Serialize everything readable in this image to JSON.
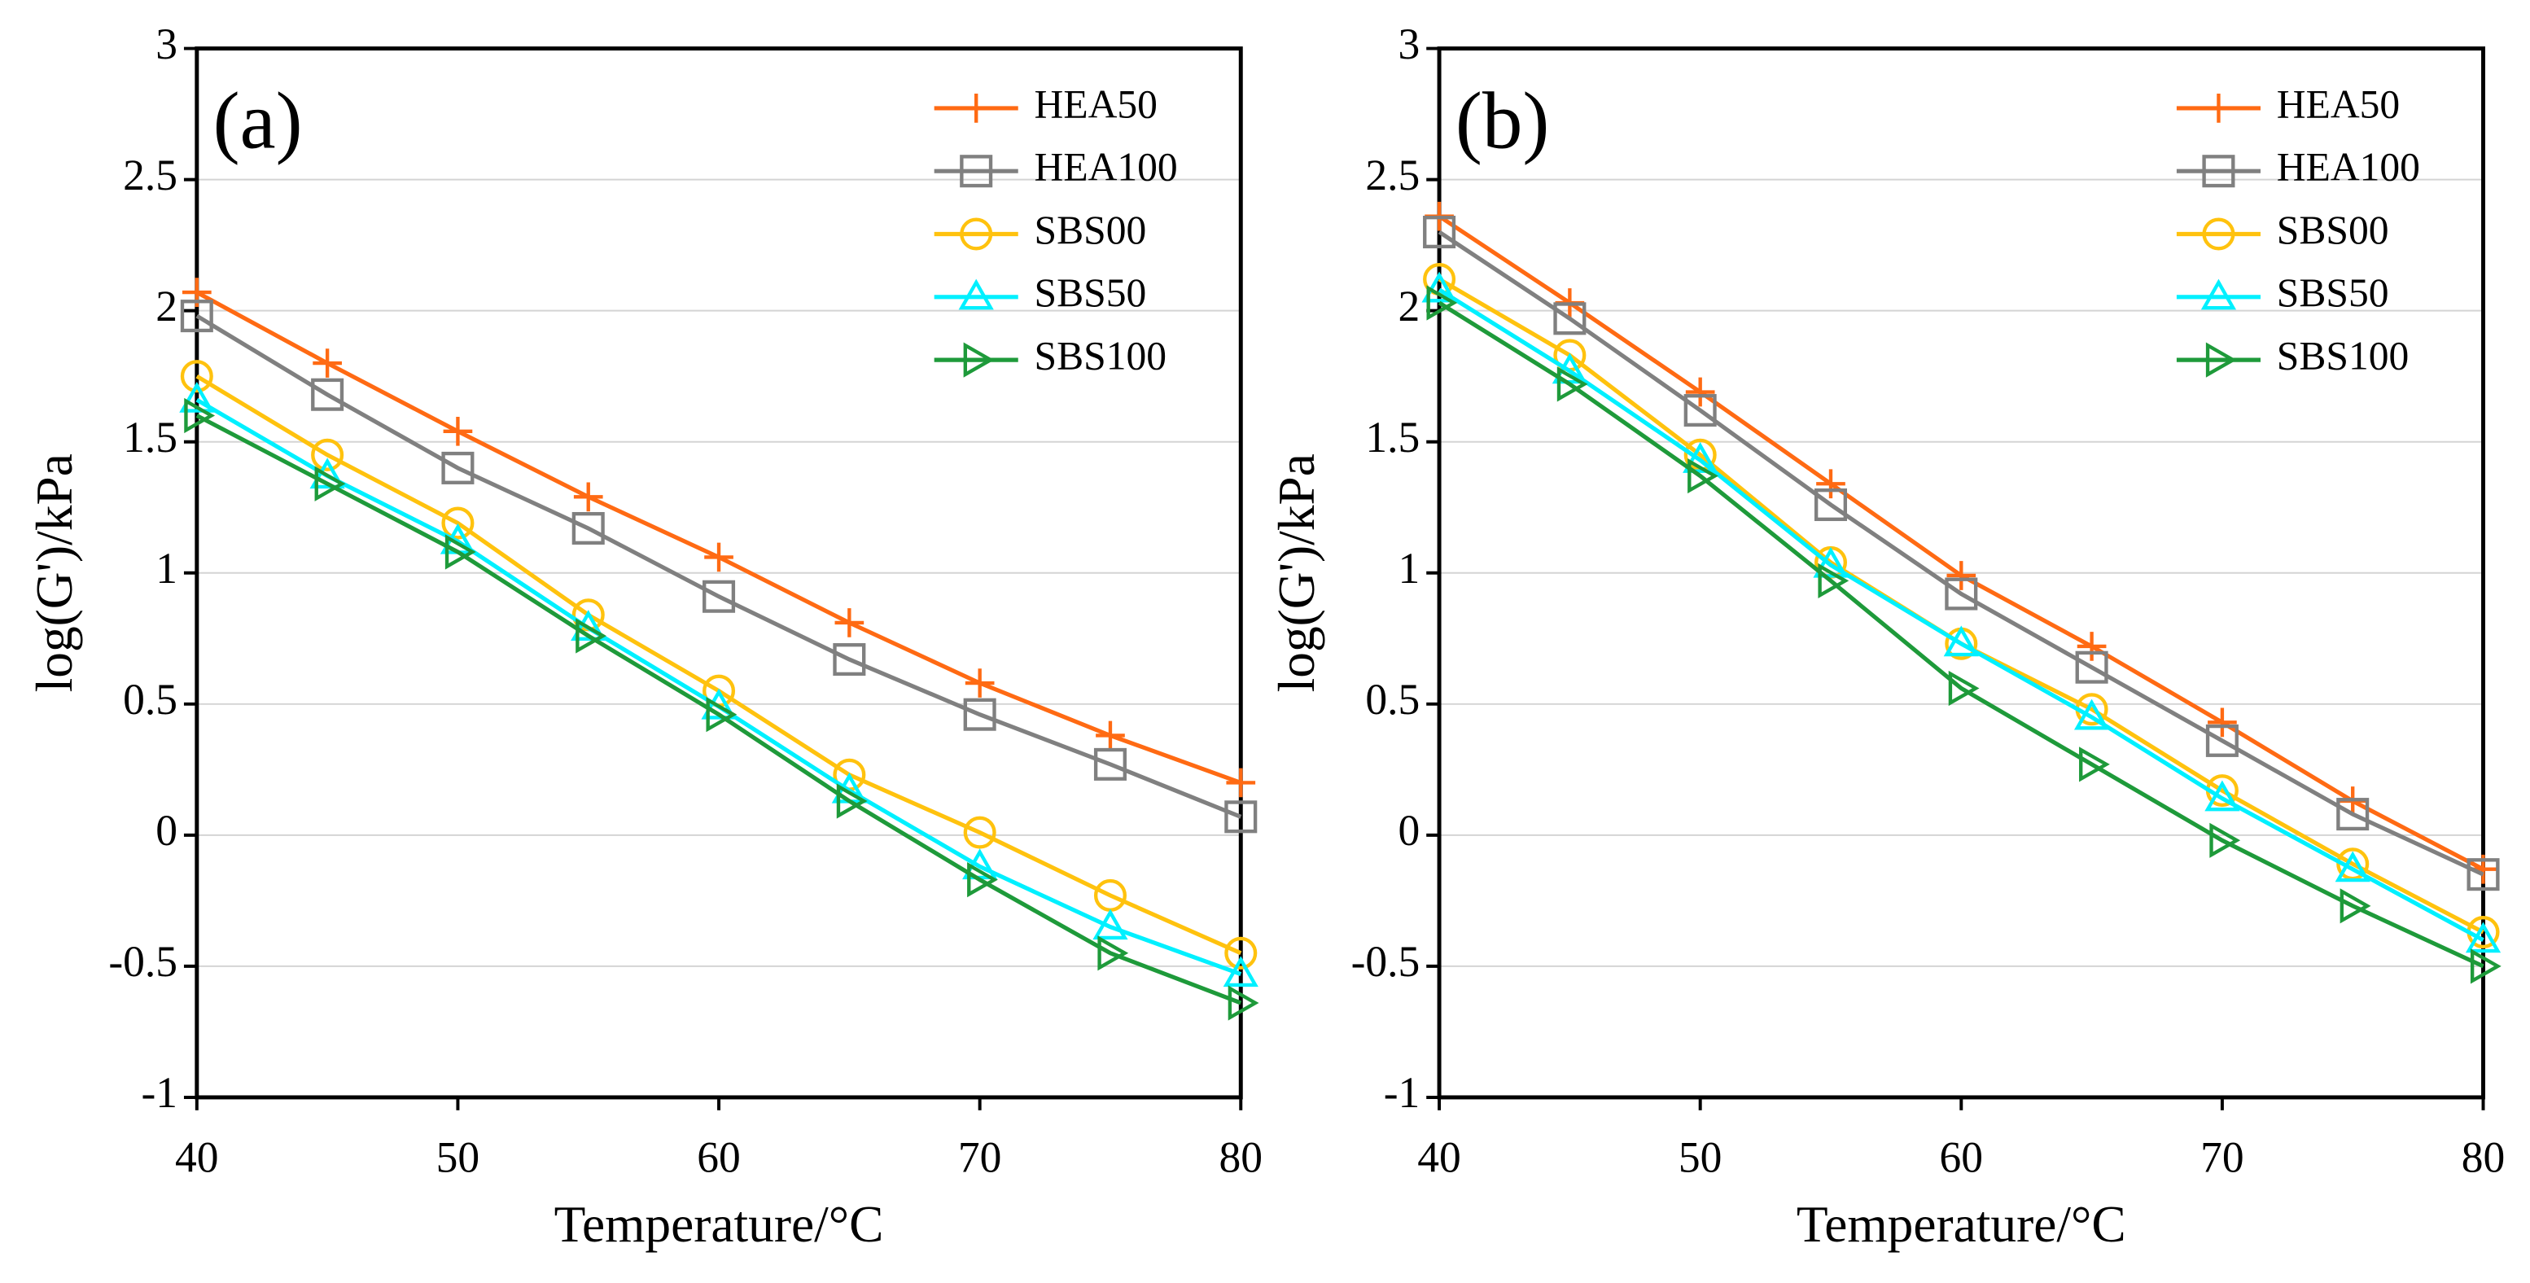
{
  "chart_data": [
    {
      "type": "line",
      "panel_label": "(a)",
      "xlabel": "Temperature/°C",
      "ylabel": "log(G')/kPa",
      "x": [
        40,
        45,
        50,
        55,
        60,
        65,
        70,
        75,
        80
      ],
      "xlim": [
        40,
        80
      ],
      "xticks": [
        40,
        50,
        60,
        70,
        80
      ],
      "ylim": [
        -1,
        3
      ],
      "yticks": [
        -1,
        -0.5,
        0,
        0.5,
        1,
        1.5,
        2,
        2.5,
        3
      ],
      "grid": true,
      "legend": "upper right",
      "series": [
        {
          "name": "HEA50",
          "color": "#ff6a13",
          "marker": "plus",
          "values": [
            2.07,
            1.8,
            1.54,
            1.29,
            1.06,
            0.81,
            0.58,
            0.38,
            0.2
          ]
        },
        {
          "name": "HEA100",
          "color": "#808080",
          "marker": "square",
          "values": [
            1.98,
            1.68,
            1.4,
            1.17,
            0.91,
            0.67,
            0.46,
            0.27,
            0.07
          ]
        },
        {
          "name": "SBS00",
          "color": "#ffc20e",
          "marker": "circle",
          "values": [
            1.75,
            1.45,
            1.19,
            0.84,
            0.55,
            0.23,
            0.01,
            -0.23,
            -0.45
          ]
        },
        {
          "name": "SBS50",
          "color": "#00f0ff",
          "marker": "triangle-up",
          "values": [
            1.66,
            1.37,
            1.12,
            0.79,
            0.49,
            0.17,
            -0.12,
            -0.35,
            -0.53
          ]
        },
        {
          "name": "SBS100",
          "color": "#1e9a3a",
          "marker": "triangle-right",
          "values": [
            1.6,
            1.34,
            1.08,
            0.76,
            0.46,
            0.13,
            -0.17,
            -0.45,
            -0.64
          ]
        }
      ]
    },
    {
      "type": "line",
      "panel_label": "(b)",
      "xlabel": "Temperature/°C",
      "ylabel": "log(G')/kPa",
      "x": [
        40,
        45,
        50,
        55,
        60,
        65,
        70,
        75,
        80
      ],
      "xlim": [
        40,
        80
      ],
      "xticks": [
        40,
        50,
        60,
        70,
        80
      ],
      "ylim": [
        -1,
        3
      ],
      "yticks": [
        -1,
        -0.5,
        0,
        0.5,
        1,
        1.5,
        2,
        2.5,
        3
      ],
      "grid": true,
      "legend": "upper right",
      "series": [
        {
          "name": "HEA50",
          "color": "#ff6a13",
          "marker": "plus",
          "values": [
            2.36,
            2.03,
            1.69,
            1.34,
            0.99,
            0.72,
            0.43,
            0.13,
            -0.13
          ]
        },
        {
          "name": "HEA100",
          "color": "#808080",
          "marker": "square",
          "values": [
            2.3,
            1.97,
            1.62,
            1.26,
            0.92,
            0.64,
            0.36,
            0.08,
            -0.15
          ]
        },
        {
          "name": "SBS00",
          "color": "#ffc20e",
          "marker": "circle",
          "values": [
            2.12,
            1.83,
            1.45,
            1.04,
            0.73,
            0.48,
            0.17,
            -0.11,
            -0.37
          ]
        },
        {
          "name": "SBS50",
          "color": "#00f0ff",
          "marker": "triangle-up",
          "values": [
            2.08,
            1.77,
            1.43,
            1.03,
            0.73,
            0.45,
            0.14,
            -0.13,
            -0.4
          ]
        },
        {
          "name": "SBS100",
          "color": "#1e9a3a",
          "marker": "triangle-right",
          "values": [
            2.03,
            1.72,
            1.37,
            0.97,
            0.56,
            0.27,
            -0.02,
            -0.27,
            -0.5
          ]
        }
      ]
    }
  ]
}
